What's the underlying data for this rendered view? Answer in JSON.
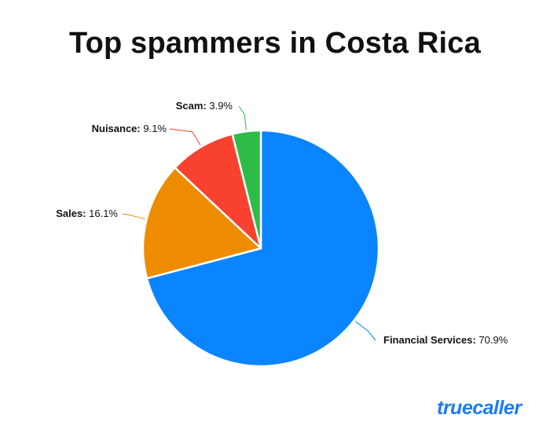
{
  "chart_data": {
    "type": "pie",
    "title": "Top spammers in Costa Rica",
    "slices": [
      {
        "label": "Financial Services",
        "value": 70.9,
        "display": "70.9%",
        "color": "#0a85ff"
      },
      {
        "label": "Sales",
        "value": 16.1,
        "display": "16.1%",
        "color": "#ee8c00"
      },
      {
        "label": "Nuisance",
        "value": 9.1,
        "display": "9.1%",
        "color": "#f8412f"
      },
      {
        "label": "Scam",
        "value": 3.9,
        "display": "3.9%",
        "color": "#2ebb48"
      }
    ]
  },
  "branding": {
    "logo_text": "truecaller",
    "logo_color": "#1c7bf5"
  }
}
